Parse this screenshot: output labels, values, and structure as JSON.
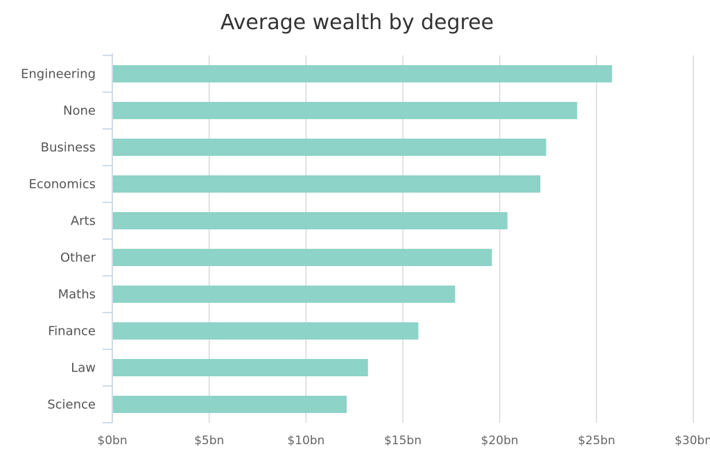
{
  "chart_data": {
    "type": "bar",
    "orientation": "horizontal",
    "title": "Average wealth by degree",
    "xlabel": "",
    "ylabel": "",
    "categories": [
      "Engineering",
      "None",
      "Business",
      "Economics",
      "Arts",
      "Other",
      "Maths",
      "Finance",
      "Law",
      "Science"
    ],
    "values": [
      25.8,
      24.0,
      22.4,
      22.1,
      20.4,
      19.6,
      17.7,
      15.8,
      13.2,
      12.1
    ],
    "unit": "$bn",
    "xlim": [
      0,
      30
    ],
    "x_ticks": [
      0,
      5,
      10,
      15,
      20,
      25,
      30
    ],
    "x_tick_labels": [
      "$0bn",
      "$5bn",
      "$10bn",
      "$15bn",
      "$20bn",
      "$25bn",
      "$30bn"
    ],
    "grid": true,
    "legend": "none",
    "bar_color": "#8dd3c7",
    "grid_color": "#d8d8d8",
    "axis_color": "#c0d0e0"
  }
}
